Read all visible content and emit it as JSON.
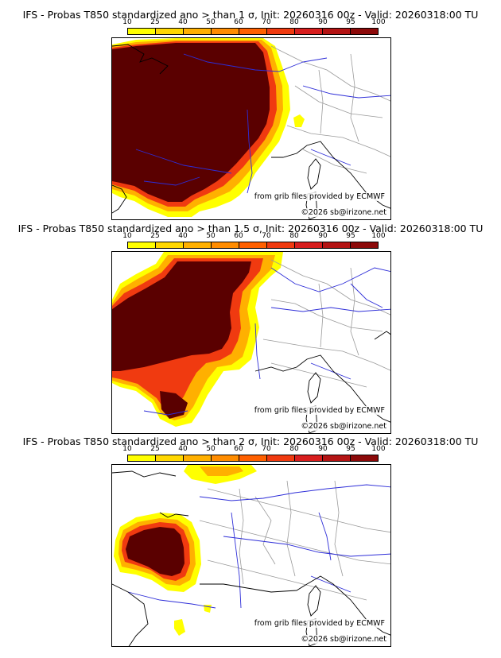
{
  "colors": {
    "scale": [
      "#ffff00",
      "#ffd700",
      "#ffb000",
      "#ff8c00",
      "#ff6000",
      "#f03a10",
      "#d81e1e",
      "#b41414",
      "#8c0a0a",
      "#5a0000"
    ],
    "rivers": "#2d2dd8",
    "borders": "#9a9a9a",
    "coast": "#000000"
  },
  "colorbar": {
    "ticks": [
      "10",
      "25",
      "40",
      "50",
      "60",
      "70",
      "80",
      "90",
      "95",
      "100"
    ]
  },
  "panels": [
    {
      "title": "IFS - Probas T850  standardized ano > than 1 σ, Init: 20260316 00z - Valid: 20260318:00 TU",
      "credit": "from grib files provided by ECMWF",
      "copyright": "©2026 sb@irizone.net"
    },
    {
      "title": "IFS - Probas T850  standardized ano > than 1.5 σ, Init: 20260316 00z - Valid: 20260318:00 TU",
      "credit": "from grib files provided by ECMWF",
      "copyright": "©2026 sb@irizone.net"
    },
    {
      "title": "IFS - Probas T850  standardized ano > than 2 σ, Init: 20260316 00z - Valid: 20260318:00 TU",
      "credit": "from grib files provided by ECMWF",
      "copyright": "©2026 sb@irizone.net"
    }
  ]
}
